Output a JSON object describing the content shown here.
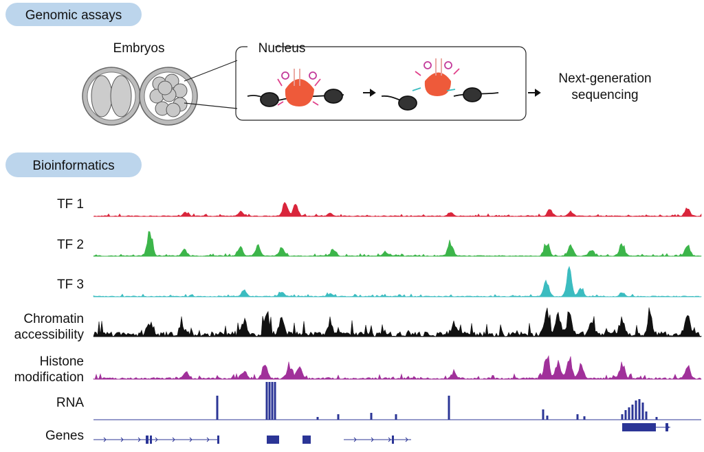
{
  "sections": {
    "assays": "Genomic assays",
    "bioinformatics": "Bioinformatics"
  },
  "assay": {
    "embryos": "Embryos",
    "nucleus": "Nucleus",
    "sequencing": [
      "Next-generation",
      "sequencing"
    ]
  },
  "tracks": [
    {
      "label": [
        "TF 1"
      ]
    },
    {
      "label": [
        "TF 2"
      ]
    },
    {
      "label": [
        "TF 3"
      ]
    },
    {
      "label": [
        "Chromatin",
        "accessibility"
      ]
    },
    {
      "label": [
        "Histone",
        "modification"
      ]
    },
    {
      "label": [
        "RNA"
      ]
    },
    {
      "label": [
        "Genes"
      ]
    }
  ]
}
